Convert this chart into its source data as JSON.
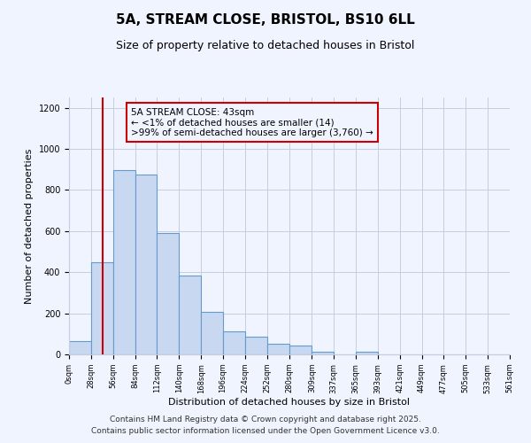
{
  "title": "5A, STREAM CLOSE, BRISTOL, BS10 6LL",
  "subtitle": "Size of property relative to detached houses in Bristol",
  "xlabel": "Distribution of detached houses by size in Bristol",
  "ylabel": "Number of detached properties",
  "bar_values": [
    65,
    450,
    895,
    875,
    590,
    385,
    205,
    110,
    85,
    50,
    45,
    15,
    0,
    15,
    0,
    0,
    0,
    0,
    0,
    0
  ],
  "bin_edges": [
    0,
    28,
    56,
    84,
    112,
    140,
    168,
    196,
    224,
    252,
    280,
    309,
    337,
    365,
    393,
    421,
    449,
    477,
    505,
    533,
    561
  ],
  "tick_labels": [
    "0sqm",
    "28sqm",
    "56sqm",
    "84sqm",
    "112sqm",
    "140sqm",
    "168sqm",
    "196sqm",
    "224sqm",
    "252sqm",
    "280sqm",
    "309sqm",
    "337sqm",
    "365sqm",
    "393sqm",
    "421sqm",
    "449sqm",
    "477sqm",
    "505sqm",
    "533sqm",
    "561sqm"
  ],
  "bar_color": "#c8d8f0",
  "bar_edge_color": "#6699cc",
  "vline_x": 43,
  "vline_color": "#cc0000",
  "annotation_line1": "5A STREAM CLOSE: 43sqm",
  "annotation_line2": "← <1% of detached houses are smaller (14)",
  "annotation_line3": ">99% of semi-detached houses are larger (3,760) →",
  "ylim": [
    0,
    1250
  ],
  "yticks": [
    0,
    200,
    400,
    600,
    800,
    1000,
    1200
  ],
  "background_color": "#f0f4ff",
  "grid_color": "#c8cce0",
  "footer_line1": "Contains HM Land Registry data © Crown copyright and database right 2025.",
  "footer_line2": "Contains public sector information licensed under the Open Government Licence v3.0.",
  "title_fontsize": 11,
  "subtitle_fontsize": 9,
  "annotation_fontsize": 7.5,
  "footer_fontsize": 6.5,
  "xlabel_fontsize": 8,
  "ylabel_fontsize": 8
}
